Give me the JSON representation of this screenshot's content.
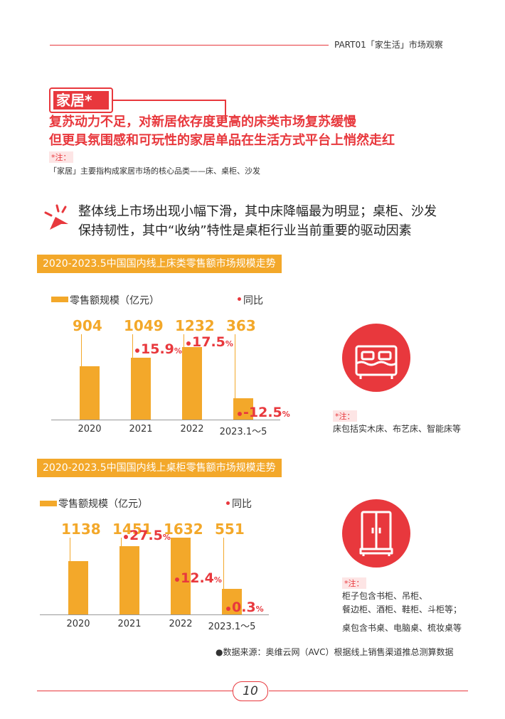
{
  "header": {
    "title": "PART01「家生活」市场观察"
  },
  "section": {
    "tag": "家居*",
    "headline1": "复苏动力不足，对新居依存度更高的床类市场复苏缓慢",
    "headline2": "但更具氛围感和可玩性的家居单品在生活方式平台上悄然走红",
    "note_label": "*注：",
    "note_text": "「家居」主要指构成家居市场的核心品类——床、桌柜、沙发"
  },
  "key_point": {
    "line1": "整体线上市场出现小幅下滑，其中床降幅最为明显；桌柜、沙发",
    "line2": "保持韧性，其中“收纳”特性是桌柜行业当前重要的驱动因素"
  },
  "chart_data": [
    {
      "type": "bar",
      "title": "2020-2023.5中国国内线上床类零售额市场规模走势",
      "categories": [
        "2020",
        "2021",
        "2022",
        "2023.1～5"
      ],
      "series": [
        {
          "name": "零售额规模（亿元）",
          "values": [
            904,
            1049,
            1232,
            363
          ]
        },
        {
          "name": "同比",
          "values": [
            null,
            15.9,
            17.5,
            -12.5
          ]
        }
      ],
      "value_labels": [
        "904",
        "1049",
        "1232",
        "363"
      ],
      "yoy_labels": [
        "",
        "15.9",
        "17.5",
        "-12.5"
      ],
      "pct": "%",
      "icon": "bed-icon",
      "note_label": "*注：",
      "note_lines": [
        "床包括实木床、布艺床、智能床等"
      ]
    },
    {
      "type": "bar",
      "title": "2020-2023.5中国国内线上桌柜零售额市场规模走势",
      "categories": [
        "2020",
        "2021",
        "2022",
        "2023.1～5"
      ],
      "series": [
        {
          "name": "零售额规模（亿元）",
          "values": [
            1138,
            1451,
            1632,
            551
          ]
        },
        {
          "name": "同比",
          "values": [
            null,
            27.5,
            12.4,
            0.3
          ]
        }
      ],
      "value_labels": [
        "1138",
        "1451",
        "1632",
        "551"
      ],
      "yoy_labels": [
        "",
        "27.5",
        "12.4",
        "0.3"
      ],
      "pct": "%",
      "icon": "wardrobe-icon",
      "note_label": "*注：",
      "note_lines": [
        "柜子包含书柜、吊柜、",
        "餐边柜、酒柜、鞋柜、斗柜等；",
        "桌包含书桌、电脑桌、梳妆桌等"
      ]
    }
  ],
  "source": "●数据来源：奥维云网（AVC）根据线上销售渠道推总测算数据",
  "page_number": "10",
  "colors": {
    "accent_red": "#e8383d",
    "bar_orange": "#f3a82a"
  }
}
